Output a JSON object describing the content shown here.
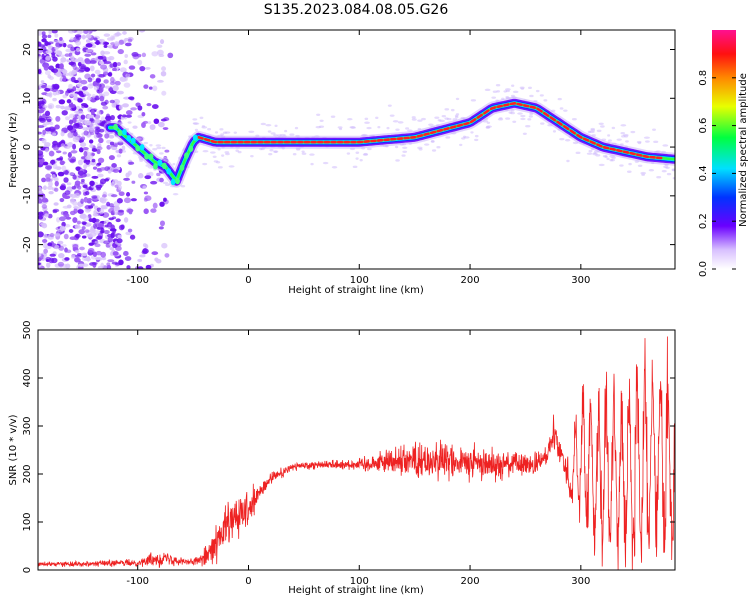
{
  "title": "S135.2023.084.08.05.G26",
  "colors": {
    "snr_line": "#ee2222",
    "frame": "#000000"
  },
  "chart_data": [
    {
      "type": "heatmap",
      "xlabel": "Height of straight line (km)",
      "ylabel": "Frequency (Hz)",
      "xlim": [
        -190,
        385
      ],
      "ylim": [
        -25,
        24
      ],
      "x_ticks": [
        -100,
        0,
        100,
        200,
        300
      ],
      "y_ticks": [
        -20,
        -10,
        0,
        10,
        20
      ],
      "colorbar": {
        "label": "Normalized spectral amplitude",
        "range": [
          0,
          1
        ],
        "ticks": [
          0.0,
          0.2,
          0.4,
          0.6,
          0.8
        ]
      },
      "ridge": {
        "x": [
          -120,
          -100,
          -85,
          -75,
          -65,
          -58,
          -50,
          -45,
          -30,
          0,
          50,
          100,
          150,
          200,
          220,
          240,
          260,
          280,
          300,
          320,
          340,
          360,
          385
        ],
        "y": [
          4,
          0,
          -3,
          -4,
          -7,
          -3,
          1,
          2,
          1,
          1,
          1,
          1,
          2,
          5,
          8,
          9,
          8,
          5,
          2,
          0,
          -1,
          -2,
          -2.5
        ]
      }
    },
    {
      "type": "line",
      "xlabel": "Height of straight line (km)",
      "ylabel": "SNR (10 * v/v)",
      "xlim": [
        -190,
        385
      ],
      "ylim": [
        0,
        500
      ],
      "x_ticks": [
        -100,
        0,
        100,
        200,
        300
      ],
      "y_ticks": [
        0,
        100,
        200,
        300,
        400,
        500
      ],
      "envelope": {
        "x": [
          -190,
          -100,
          -80,
          -60,
          -50,
          -40,
          -30,
          -20,
          -10,
          0,
          10,
          20,
          40,
          60,
          80,
          100,
          120,
          140,
          160,
          180,
          200,
          220,
          240,
          260,
          270,
          275,
          280,
          285,
          290,
          300,
          310,
          320,
          340,
          360,
          385
        ],
        "mean": [
          12,
          15,
          25,
          20,
          15,
          30,
          50,
          90,
          110,
          120,
          160,
          190,
          215,
          220,
          220,
          220,
          225,
          230,
          228,
          225,
          222,
          222,
          220,
          218,
          240,
          300,
          260,
          220,
          200,
          230,
          200,
          200,
          200,
          220,
          230
        ],
        "spread": [
          5,
          8,
          20,
          10,
          8,
          20,
          40,
          60,
          50,
          40,
          25,
          15,
          10,
          10,
          12,
          15,
          25,
          40,
          45,
          45,
          40,
          35,
          30,
          25,
          20,
          50,
          40,
          30,
          60,
          120,
          150,
          170,
          190,
          200,
          190
        ]
      }
    }
  ]
}
